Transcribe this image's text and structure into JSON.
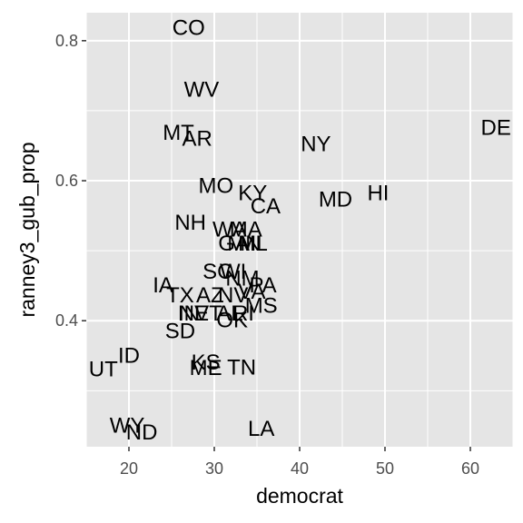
{
  "chart_data": {
    "type": "scatter",
    "xlabel": "democrat",
    "ylabel": "ranney3_gub_prop",
    "xlim": [
      15.0,
      65.0
    ],
    "ylim": [
      0.22,
      0.84
    ],
    "x_ticks": [
      20,
      30,
      40,
      50,
      60
    ],
    "x_tick_labels": [
      "20",
      "30",
      "40",
      "50",
      "60"
    ],
    "y_ticks": [
      0.4,
      0.6,
      0.8
    ],
    "y_tick_labels": [
      "0.4",
      "0.6",
      "0.8"
    ],
    "grid": true,
    "colors": {
      "panel": "#e5e5e5",
      "grid_major": "#ffffff",
      "text": "#000000",
      "ticks": "#4d4d4d"
    },
    "points": [
      {
        "label": "CO",
        "x": 27.0,
        "y": 0.818
      },
      {
        "label": "WV",
        "x": 28.5,
        "y": 0.73
      },
      {
        "label": "MT",
        "x": 25.8,
        "y": 0.668
      },
      {
        "label": "AR",
        "x": 28.0,
        "y": 0.66
      },
      {
        "label": "NY",
        "x": 41.9,
        "y": 0.652
      },
      {
        "label": "DE",
        "x": 63.0,
        "y": 0.675
      },
      {
        "label": "MO",
        "x": 30.2,
        "y": 0.592
      },
      {
        "label": "KY",
        "x": 34.5,
        "y": 0.582
      },
      {
        "label": "CA",
        "x": 36.0,
        "y": 0.563
      },
      {
        "label": "MD",
        "x": 44.2,
        "y": 0.573
      },
      {
        "label": "HI",
        "x": 49.2,
        "y": 0.582
      },
      {
        "label": "NH",
        "x": 27.2,
        "y": 0.54
      },
      {
        "label": "WA",
        "x": 31.8,
        "y": 0.53
      },
      {
        "label": "MA",
        "x": 33.7,
        "y": 0.53
      },
      {
        "label": "GA",
        "x": 32.3,
        "y": 0.51
      },
      {
        "label": "MN",
        "x": 33.5,
        "y": 0.51
      },
      {
        "label": "MI",
        "x": 34.2,
        "y": 0.51
      },
      {
        "label": "IL",
        "x": 35.2,
        "y": 0.51
      },
      {
        "label": "SC",
        "x": 30.4,
        "y": 0.47
      },
      {
        "label": "WI",
        "x": 32.2,
        "y": 0.47
      },
      {
        "label": "NM",
        "x": 33.3,
        "y": 0.46
      },
      {
        "label": "IA",
        "x": 24.0,
        "y": 0.45
      },
      {
        "label": "PA",
        "x": 35.7,
        "y": 0.45
      },
      {
        "label": "NV",
        "x": 32.2,
        "y": 0.436
      },
      {
        "label": "VA",
        "x": 34.4,
        "y": 0.441
      },
      {
        "label": "TX",
        "x": 26.0,
        "y": 0.436
      },
      {
        "label": "AZ",
        "x": 29.5,
        "y": 0.436
      },
      {
        "label": "MS",
        "x": 35.5,
        "y": 0.421
      },
      {
        "label": "IN",
        "x": 27.0,
        "y": 0.41
      },
      {
        "label": "VT",
        "x": 29.3,
        "y": 0.41
      },
      {
        "label": "AL",
        "x": 31.8,
        "y": 0.41
      },
      {
        "label": "RI",
        "x": 33.4,
        "y": 0.41
      },
      {
        "label": "OK",
        "x": 32.1,
        "y": 0.4
      },
      {
        "label": "NE",
        "x": 27.6,
        "y": 0.41
      },
      {
        "label": "SD",
        "x": 26.0,
        "y": 0.385
      },
      {
        "label": "UT",
        "x": 17.0,
        "y": 0.33
      },
      {
        "label": "ID",
        "x": 20.0,
        "y": 0.35
      },
      {
        "label": "KS",
        "x": 29.0,
        "y": 0.34
      },
      {
        "label": "ME",
        "x": 29.0,
        "y": 0.332
      },
      {
        "label": "TN",
        "x": 33.2,
        "y": 0.333
      },
      {
        "label": "WY",
        "x": 19.8,
        "y": 0.25
      },
      {
        "label": "ND",
        "x": 21.5,
        "y": 0.24
      },
      {
        "label": "LA",
        "x": 35.5,
        "y": 0.245
      }
    ]
  }
}
